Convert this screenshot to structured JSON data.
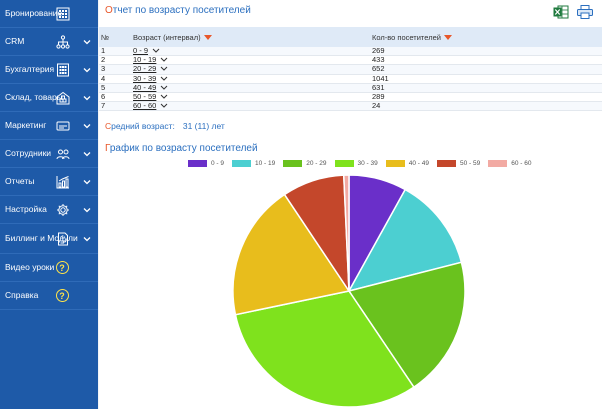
{
  "sidebar": {
    "items": [
      {
        "label": "Бронирование",
        "icon": "calendar-icon",
        "chevron": false
      },
      {
        "label": "CRM",
        "icon": "hierarchy-icon",
        "chevron": true
      },
      {
        "label": "Бухгалтерия",
        "icon": "calculator-icon",
        "chevron": true
      },
      {
        "label": "Склад, товары",
        "icon": "warehouse-icon",
        "chevron": true
      },
      {
        "label": "Маркетинг",
        "icon": "card-icon",
        "chevron": true
      },
      {
        "label": "Сотрудники",
        "icon": "users-icon",
        "chevron": true
      },
      {
        "label": "Отчеты",
        "icon": "chart-icon",
        "chevron": true
      },
      {
        "label": "Настройка",
        "icon": "gear-icon",
        "chevron": true
      },
      {
        "label": "Биллинг и Модули",
        "icon": "invoice-icon",
        "chevron": true
      },
      {
        "label": "Видео уроки",
        "icon": "help-icon",
        "chevron": false
      },
      {
        "label": "Справка",
        "icon": "help-icon",
        "chevron": false
      }
    ]
  },
  "report": {
    "title_first": "О",
    "title_rest": "тчет по возрасту посетителей",
    "columns": {
      "num": "№",
      "range": "Возраст (интервал)",
      "count": "Кол-во посетителей"
    },
    "rows": [
      {
        "n": "1",
        "range": "0 - 9",
        "count": "269"
      },
      {
        "n": "2",
        "range": "10 - 19",
        "count": "433"
      },
      {
        "n": "3",
        "range": "20 - 29",
        "count": "652"
      },
      {
        "n": "4",
        "range": "30 - 39",
        "count": "1041"
      },
      {
        "n": "5",
        "range": "40 - 49",
        "count": "631"
      },
      {
        "n": "6",
        "range": "50 - 59",
        "count": "289"
      },
      {
        "n": "7",
        "range": "60 - 60",
        "count": "24"
      }
    ],
    "avg_first": "С",
    "avg_rest": "редний возраст:",
    "avg_value": "31 (11) лет"
  },
  "chart_title_first": "Г",
  "chart_title_rest": "рафик по возрасту посетителей",
  "chart_data": {
    "type": "pie",
    "categories": [
      "0 - 9",
      "10 - 19",
      "20 - 29",
      "30 - 39",
      "40 - 49",
      "50 - 59",
      "60 - 60"
    ],
    "values": [
      269,
      433,
      652,
      1041,
      631,
      289,
      24
    ],
    "colors": [
      "#6a2fc9",
      "#4ccfd1",
      "#6ac21e",
      "#7fe21d",
      "#e8bd1c",
      "#c4472b",
      "#f2aaa3"
    ],
    "legend": "top"
  }
}
